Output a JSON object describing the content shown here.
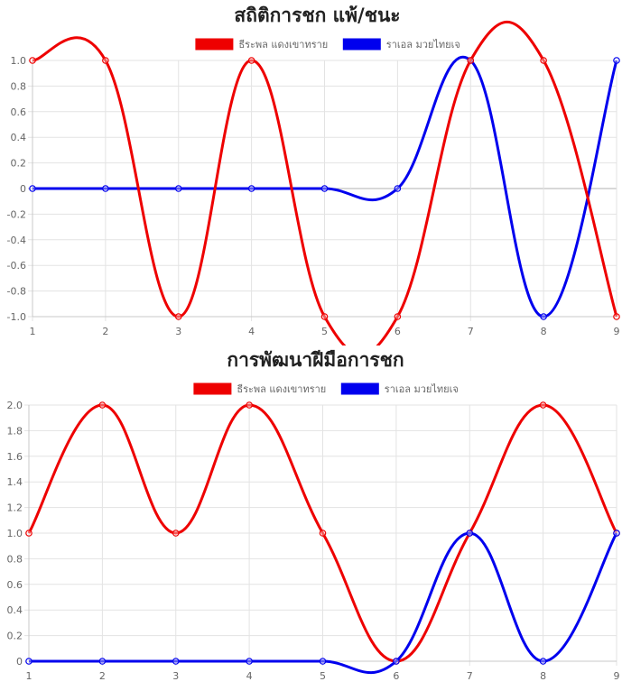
{
  "chart_data": [
    {
      "type": "line",
      "title": "สถิติการชก แพ้/ชนะ",
      "x": [
        1,
        2,
        3,
        4,
        5,
        6,
        7,
        8,
        9
      ],
      "ylim": [
        -1,
        1
      ],
      "ytick_step": 0.2,
      "yticks": [
        "1.0",
        "0.8",
        "0.6",
        "0.4",
        "0.2",
        "0",
        "-0.2",
        "-0.4",
        "-0.6",
        "-0.8",
        "-1.0"
      ],
      "legend_position": "top-center",
      "grid": true,
      "series": [
        {
          "name": "ธีระพล แดงเขาทราย",
          "color": "#ee0000",
          "values": [
            1,
            1,
            -1,
            1,
            -1,
            -1,
            1,
            1,
            -1
          ]
        },
        {
          "name": "ราเอล มวยไทยเจ",
          "color": "#0000ee",
          "values": [
            0,
            0,
            0,
            0,
            0,
            0,
            1,
            -1,
            1
          ]
        }
      ]
    },
    {
      "type": "line",
      "title": "การพัฒนาฝีมือการชก",
      "x": [
        1,
        2,
        3,
        4,
        5,
        6,
        7,
        8,
        9
      ],
      "ylim": [
        0,
        2
      ],
      "ytick_step": 0.2,
      "yticks": [
        "2.0",
        "1.8",
        "1.6",
        "1.4",
        "1.2",
        "1.0",
        "0.8",
        "0.6",
        "0.4",
        "0.2",
        "0"
      ],
      "legend_position": "top-center",
      "grid": true,
      "series": [
        {
          "name": "ธีระพล แดงเขาทราย",
          "color": "#ee0000",
          "values": [
            1,
            2,
            1,
            2,
            1,
            0,
            1,
            2,
            1
          ]
        },
        {
          "name": "ราเอล มวยไทยเจ",
          "color": "#0000ee",
          "values": [
            0,
            0,
            0,
            0,
            0,
            0,
            1,
            0,
            1
          ]
        }
      ]
    }
  ]
}
